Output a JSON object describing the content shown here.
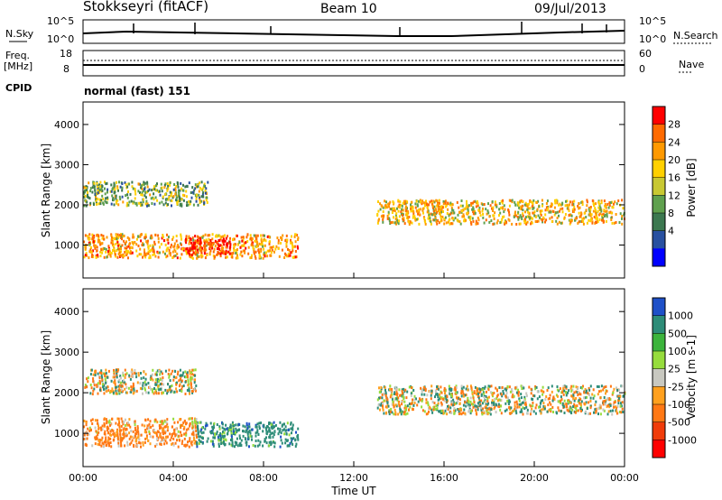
{
  "header": {
    "station": "Stokkseyri (fitACF)",
    "beam": "Beam 10",
    "date": "09/Jul/2013"
  },
  "info_panels": {
    "nsky_label": "N.Sky",
    "nsky_ticks": [
      "10^5",
      "10^0"
    ],
    "nsearch_label": "N.Search",
    "nsearch_ticks": [
      "10^5",
      "10^0"
    ],
    "freq_label": "Freq.",
    "freq_unit": "[MHz]",
    "freq_ticks": [
      "18",
      "8"
    ],
    "nave_label": "Nave",
    "nave_ticks": [
      "60",
      "0"
    ],
    "cpid_label": "CPID",
    "cpid_value": "normal (fast) 151"
  },
  "chart_data": [
    {
      "type": "heatmap",
      "quantity": "Power",
      "ylabel": "Slant Range [km]",
      "ylim": [
        180,
        4560
      ],
      "yticks": [
        1000,
        2000,
        3000,
        4000
      ],
      "xlim": [
        0,
        24
      ],
      "colorbar": {
        "label": "Power [dB]",
        "ticks": [
          "28",
          "24",
          "20",
          "16",
          "12",
          "8",
          "4"
        ],
        "colors": [
          "#ff0000",
          "#ff6a00",
          "#ff9900",
          "#ffd000",
          "#c8c832",
          "#5fa04e",
          "#3c7850",
          "#2850a0",
          "#0000ff"
        ]
      },
      "echo_regions": [
        {
          "t_start": 0.0,
          "t_end": 5.5,
          "range_min": 2000,
          "range_max": 2600,
          "power_db": 12
        },
        {
          "t_start": 0.0,
          "t_end": 9.5,
          "range_min": 700,
          "range_max": 1300,
          "power_db": 20
        },
        {
          "t_start": 4.5,
          "t_end": 6.5,
          "range_min": 800,
          "range_max": 1200,
          "power_db": 28
        },
        {
          "t_start": 13.0,
          "t_end": 24.0,
          "range_min": 1550,
          "range_max": 2150,
          "power_db": 18
        }
      ]
    },
    {
      "type": "heatmap",
      "quantity": "Velocity",
      "ylabel": "Slant Range [km]",
      "xlabel": "Time UT",
      "ylim": [
        180,
        4560
      ],
      "yticks": [
        1000,
        2000,
        3000,
        4000
      ],
      "xlim": [
        0,
        24
      ],
      "xticks": [
        "00:00",
        "04:00",
        "08:00",
        "12:00",
        "16:00",
        "20:00",
        "00:00"
      ],
      "colorbar": {
        "label": "Velocity [m s-1]",
        "ticks": [
          "1000",
          "500",
          "100",
          "25",
          "-25",
          "-100",
          "-500",
          "-1000"
        ],
        "colors": [
          "#1e50c8",
          "#2d8c78",
          "#3cb43c",
          "#96dc3c",
          "#c8c8c0",
          "#ffa01e",
          "#ff7814",
          "#f03c0a",
          "#ff0000"
        ]
      },
      "echo_regions": [
        {
          "t_start": 0.0,
          "t_end": 5.0,
          "range_min": 2000,
          "range_max": 2600,
          "velocity": 0
        },
        {
          "t_start": 0.0,
          "t_end": 5.0,
          "range_min": 700,
          "range_max": 1400,
          "velocity": -200
        },
        {
          "t_start": 5.0,
          "t_end": 9.5,
          "range_min": 700,
          "range_max": 1300,
          "velocity": 300
        },
        {
          "t_start": 13.0,
          "t_end": 24.0,
          "range_min": 1500,
          "range_max": 2200,
          "velocity": 0
        }
      ]
    }
  ]
}
